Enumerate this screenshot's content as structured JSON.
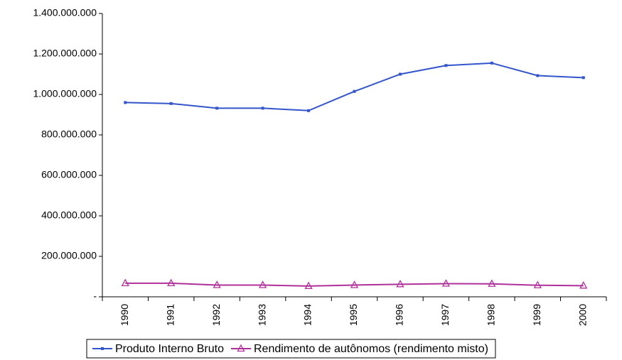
{
  "chart_data": {
    "type": "line",
    "categories": [
      "1990",
      "1991",
      "1992",
      "1993",
      "1994",
      "1995",
      "1996",
      "1997",
      "1998",
      "1999",
      "2000"
    ],
    "series": [
      {
        "name": "Produto Interno Bruto",
        "color": "#3355cc",
        "marker": "square",
        "values": [
          960000000,
          955000000,
          932000000,
          932000000,
          920000000,
          1015000000,
          1100000000,
          1143000000,
          1155000000,
          1093000000,
          1083000000
        ]
      },
      {
        "name": "Rendimento de autônomos (rendimento misto)",
        "color": "#b0309a",
        "marker": "triangle",
        "values": [
          67000000,
          67000000,
          58000000,
          58000000,
          53000000,
          58000000,
          62000000,
          65000000,
          64000000,
          57000000,
          55000000
        ]
      }
    ],
    "ylim": [
      0,
      1400000000
    ],
    "yticks": [
      {
        "value": 0,
        "label": "-"
      },
      {
        "value": 200000000,
        "label": "200.000.000"
      },
      {
        "value": 400000000,
        "label": "400.000.000"
      },
      {
        "value": 600000000,
        "label": "600.000.000"
      },
      {
        "value": 800000000,
        "label": "800.000.000"
      },
      {
        "value": 1000000000,
        "label": "1.000.000.000"
      },
      {
        "value": 1200000000,
        "label": "1.200.000.000"
      },
      {
        "value": 1400000000,
        "label": "1.400.000.000"
      }
    ],
    "grid": false,
    "legend": "bottom"
  }
}
